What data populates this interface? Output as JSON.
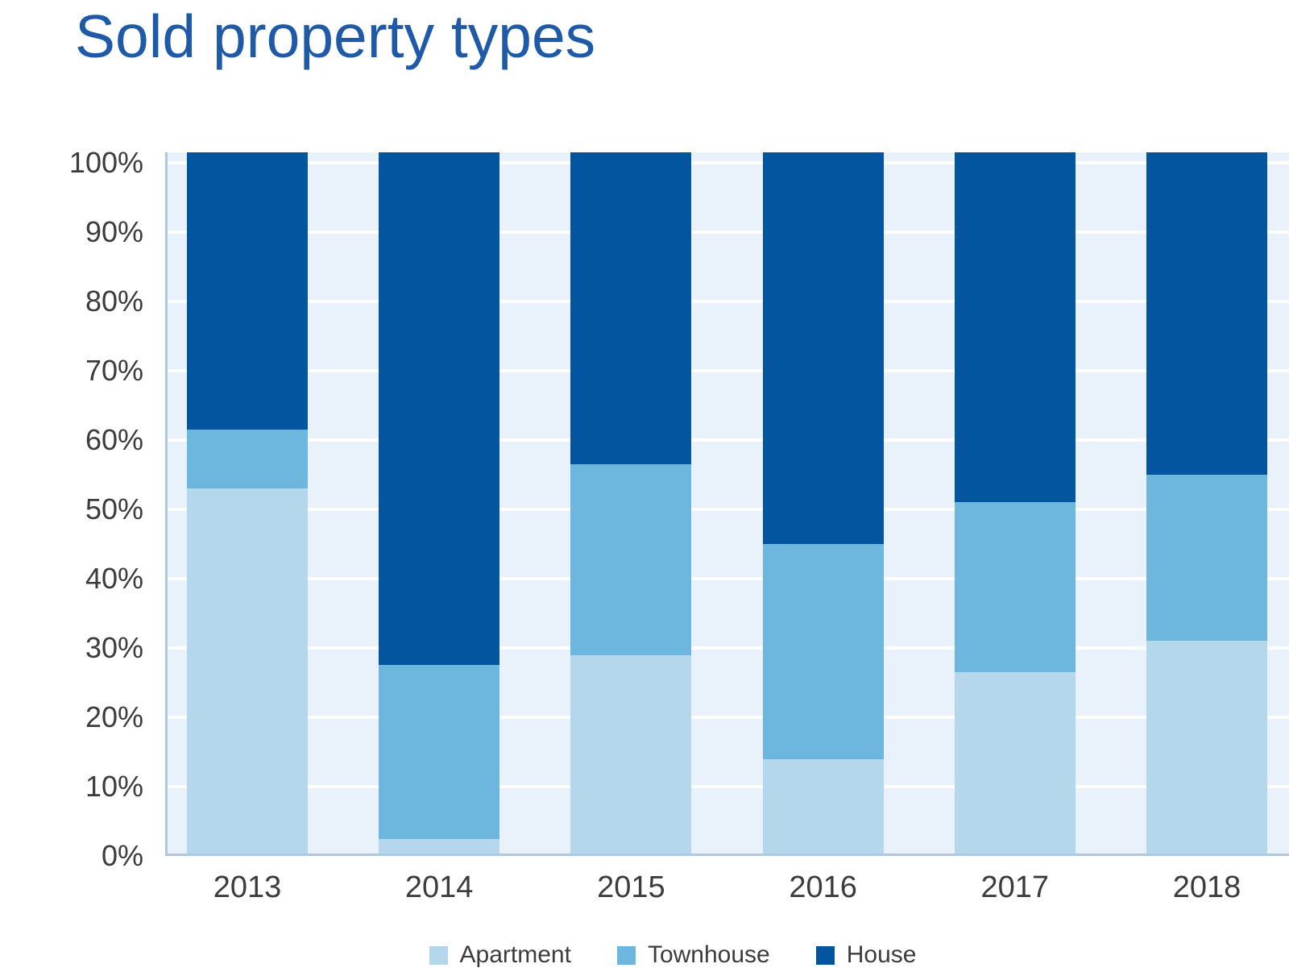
{
  "chart_data": {
    "type": "bar",
    "variant": "stacked-percentage-column",
    "title": "Sold property types",
    "title_color": "#1e5aa8",
    "categories": [
      "2013",
      "2014",
      "2015",
      "2016",
      "2017",
      "2018"
    ],
    "series": [
      {
        "name": "Apartment",
        "color": "#b4d7ec",
        "values": [
          53,
          2.5,
          29,
          14,
          26.5,
          31
        ]
      },
      {
        "name": "Townhouse",
        "color": "#6db6de",
        "values": [
          8.5,
          25,
          27.5,
          31,
          24.5,
          24
        ]
      },
      {
        "name": "House",
        "color": "#0455a0",
        "values": [
          40,
          74,
          45,
          56.5,
          50.5,
          46.5
        ]
      }
    ],
    "xlabel": "",
    "ylabel": "",
    "y_axis": {
      "min": 0,
      "max": 101.5,
      "tick_step": 10,
      "tick_labels": [
        "0%",
        "10%",
        "20%",
        "30%",
        "40%",
        "50%",
        "60%",
        "70%",
        "80%",
        "90%",
        "100%"
      ],
      "grid": true,
      "gridline_color": "#ffffff",
      "axis_line_color": "#aac9e6"
    },
    "plot_background": "#e9f1fa",
    "text_color": "#3c3c3c",
    "legend_position": "bottom"
  }
}
